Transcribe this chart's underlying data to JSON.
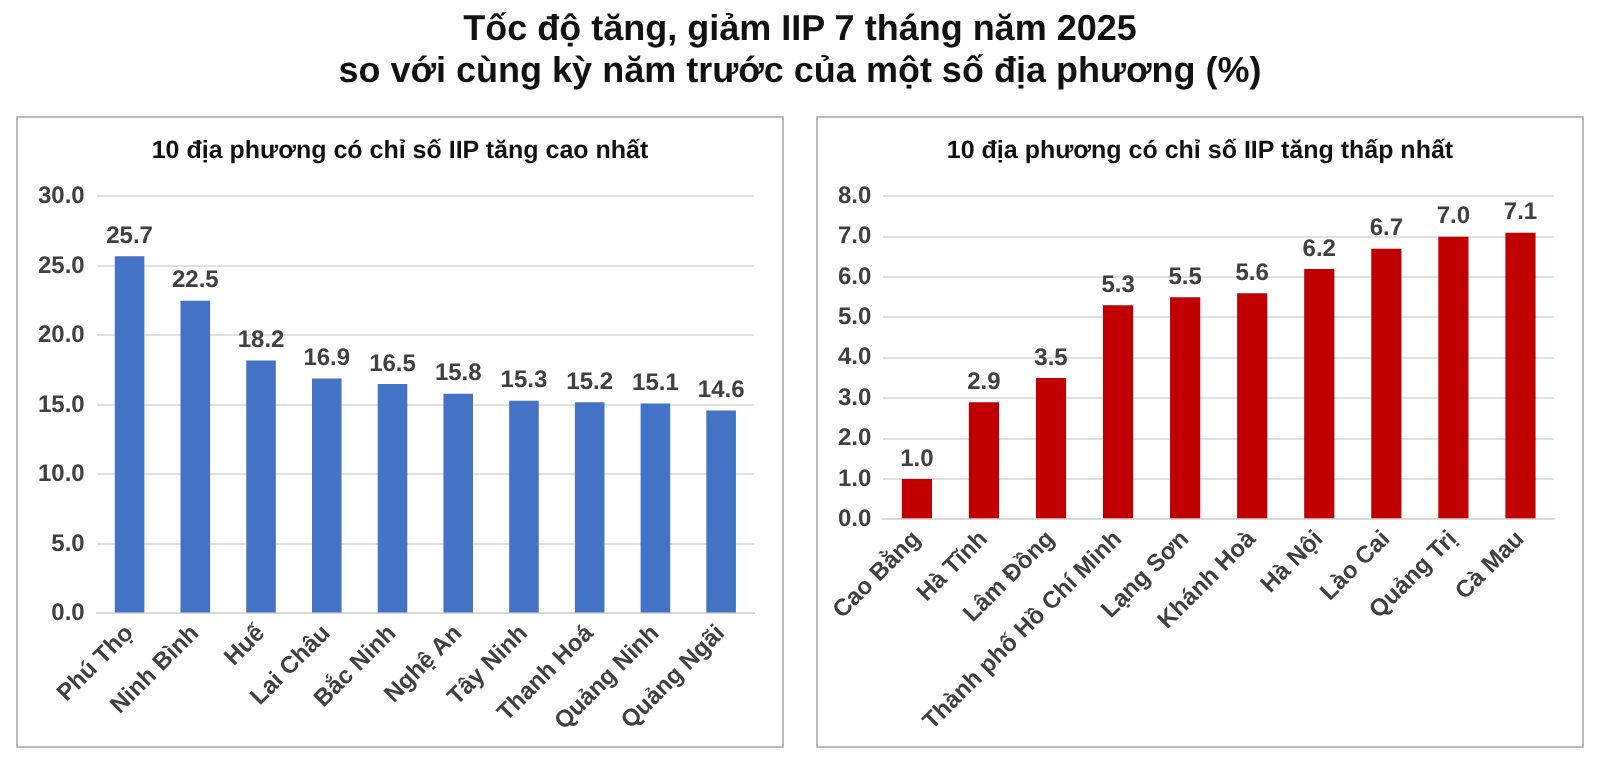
{
  "chart_data": [
    {
      "type": "bar",
      "title": "Tốc độ tăng, giảm IIP 7 tháng năm 2025\nso với cùng kỳ năm trước của một số địa phương (%)",
      "subtitle": "10 địa phương có chỉ số IIP tăng cao nhất",
      "categories": [
        "Phú Thọ",
        "Ninh Bình",
        "Huế",
        "Lai Châu",
        "Bắc Ninh",
        "Nghệ An",
        "Tây Ninh",
        "Thanh Hoá",
        "Quảng Ninh",
        "Quảng Ngãi"
      ],
      "values": [
        25.7,
        22.5,
        18.2,
        16.9,
        16.5,
        15.8,
        15.3,
        15.2,
        15.1,
        14.6
      ],
      "value_labels": [
        "25.7",
        "22.5",
        "18.2",
        "16.9",
        "16.5",
        "15.8",
        "15.3",
        "15.2",
        "15.1",
        "14.6"
      ],
      "color": "#4472c4",
      "ylim": [
        0,
        30
      ],
      "yticks": [
        {
          "value": 0,
          "label": "0.0"
        },
        {
          "value": 5,
          "label": "5.0"
        },
        {
          "value": 10,
          "label": "10.0"
        },
        {
          "value": 15,
          "label": "15.0"
        },
        {
          "value": 20,
          "label": "20.0"
        },
        {
          "value": 25,
          "label": "25.0"
        },
        {
          "value": 30,
          "label": "30.0"
        }
      ],
      "grid": "y"
    },
    {
      "type": "bar",
      "subtitle": "10 địa phương có chỉ số IIP tăng thấp nhất",
      "categories": [
        "Cao Bằng",
        "Hà Tĩnh",
        "Lâm Đồng",
        "Thành phố Hồ Chí Minh",
        "Lạng Sơn",
        "Khánh Hoà",
        "Hà Nội",
        "Lào Cai",
        "Quảng Trị",
        "Cà Mau"
      ],
      "values": [
        1.0,
        2.9,
        3.5,
        5.3,
        5.5,
        5.6,
        6.2,
        6.7,
        7.0,
        7.1
      ],
      "value_labels": [
        "1.0",
        "2.9",
        "3.5",
        "5.3",
        "5.5",
        "5.6",
        "6.2",
        "6.7",
        "7.0",
        "7.1"
      ],
      "color": "#c00000",
      "ylim": [
        0,
        8
      ],
      "yticks": [
        {
          "value": 0,
          "label": "0.0"
        },
        {
          "value": 1,
          "label": "1.0"
        },
        {
          "value": 2,
          "label": "2.0"
        },
        {
          "value": 3,
          "label": "3.0"
        },
        {
          "value": 4,
          "label": "4.0"
        },
        {
          "value": 5,
          "label": "5.0"
        },
        {
          "value": 6,
          "label": "6.0"
        },
        {
          "value": 7,
          "label": "7.0"
        },
        {
          "value": 8,
          "label": "8.0"
        }
      ],
      "grid": "y"
    }
  ]
}
